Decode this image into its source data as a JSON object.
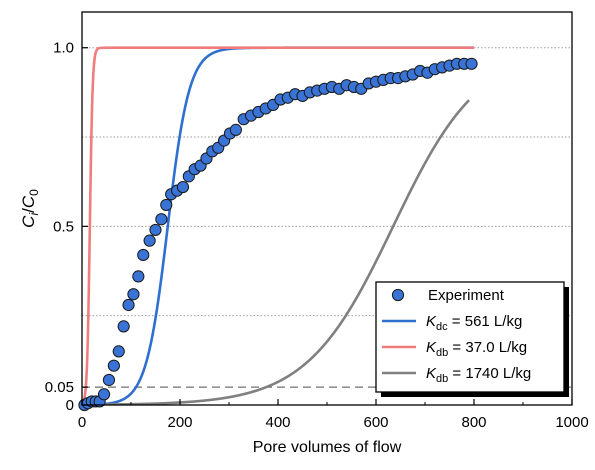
{
  "chart_data": {
    "type": "scatter+line",
    "xlabel": "Pore volumes of flow",
    "ylabel": {
      "main": "C",
      "sub1": "i",
      "sep": "/",
      "main2": "C",
      "sub2": "0"
    },
    "xlim": [
      0,
      1000
    ],
    "ylim": [
      0,
      1.1
    ],
    "xticks": [
      0,
      200,
      400,
      600,
      800,
      1000
    ],
    "xtick_labels": [
      "0",
      "200",
      "400",
      "600",
      "800",
      "1000"
    ],
    "yticks": [
      0,
      0.05,
      0.5,
      1.0
    ],
    "ytick_labels": [
      "0",
      "0.05",
      "0.5",
      "1.0"
    ],
    "grid": "dotted horizontal at 0.25, 0.5, 0.75, 1.0",
    "reference_line": {
      "y": 0.05,
      "style": "dashed"
    },
    "legend_position": "bottom-right",
    "colors": {
      "experiment_fill": "#3a73d6",
      "kdc_line": "#2e6fd0",
      "kdb37_line": "#f07c7c",
      "kdb1740_line": "#808080"
    },
    "legend": [
      {
        "label": "Experiment",
        "kind": "marker"
      },
      {
        "var": "K",
        "sub": "dc",
        "value": " = 561 L/kg",
        "kind": "line"
      },
      {
        "var": "K",
        "sub": "db",
        "value": " = 37.0 L/kg",
        "kind": "line"
      },
      {
        "var": "K",
        "sub": "db",
        "value": " = 1740 L/kg",
        "kind": "line"
      }
    ],
    "experiment": {
      "x": [
        5,
        12,
        20,
        28,
        36,
        45,
        55,
        65,
        75,
        85,
        95,
        105,
        115,
        125,
        138,
        150,
        162,
        172,
        182,
        194,
        206,
        218,
        230,
        242,
        254,
        266,
        278,
        290,
        302,
        314,
        330,
        345,
        360,
        375,
        390,
        405,
        420,
        435,
        450,
        465,
        480,
        495,
        510,
        525,
        540,
        555,
        570,
        585,
        600,
        615,
        630,
        645,
        660,
        675,
        690,
        705,
        720,
        735,
        750,
        765,
        780,
        795
      ],
      "y": [
        0,
        0.005,
        0.01,
        0.01,
        0.01,
        0.03,
        0.07,
        0.11,
        0.15,
        0.22,
        0.28,
        0.31,
        0.36,
        0.42,
        0.46,
        0.49,
        0.52,
        0.56,
        0.59,
        0.6,
        0.61,
        0.64,
        0.66,
        0.67,
        0.69,
        0.71,
        0.72,
        0.74,
        0.76,
        0.77,
        0.8,
        0.81,
        0.82,
        0.83,
        0.84,
        0.855,
        0.86,
        0.87,
        0.865,
        0.875,
        0.88,
        0.885,
        0.89,
        0.885,
        0.895,
        0.89,
        0.885,
        0.9,
        0.905,
        0.91,
        0.915,
        0.915,
        0.92,
        0.925,
        0.935,
        0.93,
        0.94,
        0.945,
        0.95,
        0.955,
        0.955,
        0.955
      ]
    },
    "series": [
      {
        "key": "kdc",
        "x0": 175,
        "w": 22,
        "xmin": 0,
        "xmax": 800,
        "ymax": 1.0
      },
      {
        "key": "kdb37",
        "x0": 16,
        "w": 2.8,
        "xmin": 0,
        "xmax": 800,
        "ymax": 1.0
      },
      {
        "key": "kdb1740",
        "x0": 635,
        "w": 88,
        "xmin": 0,
        "xmax": 790,
        "ymax": 1.0
      }
    ]
  }
}
